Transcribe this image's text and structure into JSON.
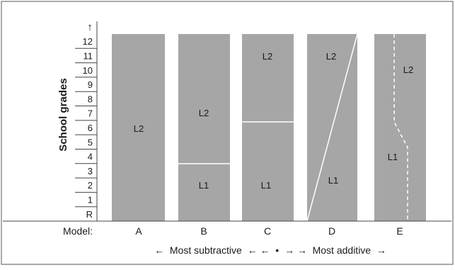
{
  "y_axis": {
    "title": "School grades",
    "arrow": "↑",
    "grades": [
      "12",
      "11",
      "10",
      "9",
      "8",
      "7",
      "6",
      "5",
      "4",
      "3",
      "2",
      "1",
      "R"
    ]
  },
  "models_row": {
    "label": "Model:",
    "models": [
      {
        "name": "A",
        "regions": [
          "L2"
        ],
        "l2_start_grade": 0
      },
      {
        "name": "B",
        "regions": [
          "L2",
          "L1"
        ],
        "l2_start_grade": 4
      },
      {
        "name": "C",
        "regions": [
          "L2",
          "L1"
        ],
        "l2_start_grade": 6.6
      },
      {
        "name": "D",
        "regions": [
          "L2",
          "L1"
        ],
        "transition": "diagonal"
      },
      {
        "name": "E",
        "regions": [
          "L2",
          "L1"
        ],
        "transition": "dashed"
      }
    ]
  },
  "spectrum": {
    "text": "←  Most subtractive  ← ←  •  → →  Most additive  →"
  },
  "colors": {
    "bar": "#a6a6a6",
    "divider": "#ffffff",
    "axis": "#444444",
    "frame": "#555555"
  }
}
